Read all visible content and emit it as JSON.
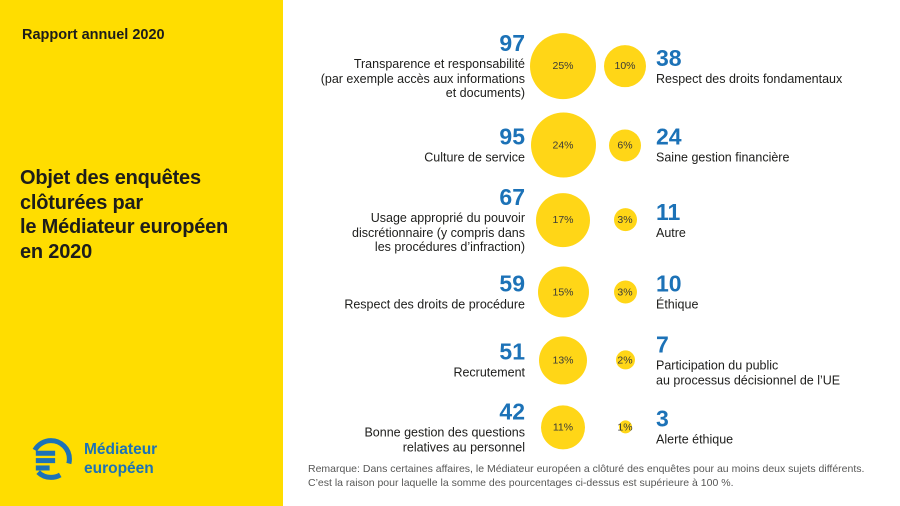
{
  "colors": {
    "sidebar_yellow": "#FFDD00",
    "bubble_yellow": "#FFD617",
    "accent_blue": "#1C72B7",
    "text_dark": "#1D1D1B"
  },
  "sidebar": {
    "report_label": "Rapport annuel 2020",
    "title": "Objet des enquêtes\nclôturées par\nle Médiateur européen\nen 2020",
    "logo_text": "Médiateur\neuropéen"
  },
  "note": "Remarque: Dans certaines affaires, le Médiateur européen a clôturé des enquêtes pour au moins deux sujets différents. C’est la raison pour laquelle la somme des pourcentages ci-dessus est supérieure à 100 %.",
  "chart_data": {
    "type": "bubble",
    "title": "Objet des enquêtes clôturées par le Médiateur européen en 2020",
    "legend_position": "none",
    "grid": false,
    "rows": [
      {
        "left": {
          "value": "97",
          "pct": 25,
          "percent_label": "25%",
          "label": "Transparence et responsabilité\n(par exemple accès aux informations\net documents)"
        },
        "right": {
          "value": "38",
          "pct": 10,
          "percent_label": "10%",
          "label": "Respect des droits fondamentaux"
        }
      },
      {
        "left": {
          "value": "95",
          "pct": 24,
          "percent_label": "24%",
          "label": "Culture de service"
        },
        "right": {
          "value": "24",
          "pct": 6,
          "percent_label": "6%",
          "label": "Saine gestion financière"
        }
      },
      {
        "left": {
          "value": "67",
          "pct": 17,
          "percent_label": "17%",
          "label": "Usage approprié du pouvoir\ndiscrétionnaire (y compris dans\nles procédures d’infraction)"
        },
        "right": {
          "value": "11",
          "pct": 3,
          "percent_label": "3%",
          "label": "Autre"
        }
      },
      {
        "left": {
          "value": "59",
          "pct": 15,
          "percent_label": "15%",
          "label": "Respect des droits de procédure"
        },
        "right": {
          "value": "10",
          "pct": 3,
          "percent_label": "3%",
          "label": "Éthique"
        }
      },
      {
        "left": {
          "value": "51",
          "pct": 13,
          "percent_label": "13%",
          "label": "Recrutement"
        },
        "right": {
          "value": "7",
          "pct": 2,
          "percent_label": "2%",
          "label": "Participation du public\nau processus décisionnel de l’UE"
        }
      },
      {
        "left": {
          "value": "42",
          "pct": 11,
          "percent_label": "11%",
          "label": "Bonne gestion des questions\nrelatives au personnel"
        },
        "right": {
          "value": "3",
          "pct": 1,
          "percent_label": "1%",
          "label": "Alerte éthique"
        }
      }
    ]
  }
}
